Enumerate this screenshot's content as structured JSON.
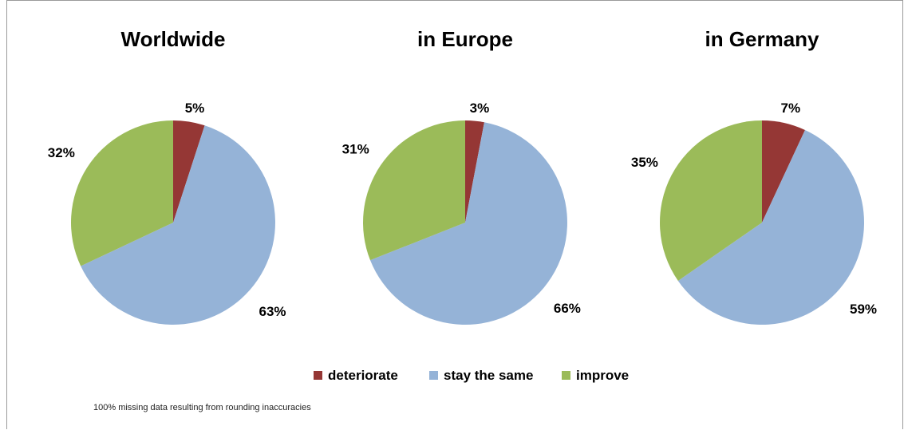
{
  "chart_data": [
    {
      "type": "pie",
      "title": "Worldwide",
      "categories": [
        "deteriorate",
        "stay the same",
        "improve"
      ],
      "values": [
        5,
        63,
        32
      ],
      "labels": [
        "5%",
        "63%",
        "32%"
      ]
    },
    {
      "type": "pie",
      "title": "in Europe",
      "categories": [
        "deteriorate",
        "stay the same",
        "improve"
      ],
      "values": [
        3,
        66,
        31
      ],
      "labels": [
        "3%",
        "66%",
        "31%"
      ]
    },
    {
      "type": "pie",
      "title": "in Germany",
      "categories": [
        "deteriorate",
        "stay the same",
        "improve"
      ],
      "values": [
        7,
        59,
        35
      ],
      "labels": [
        "7%",
        "59%",
        "35%"
      ]
    }
  ],
  "legend": {
    "placement": "bottom",
    "items": [
      {
        "label": "deteriorate",
        "color": "#953735"
      },
      {
        "label": "stay the same",
        "color": "#95b3d7"
      },
      {
        "label": "improve",
        "color": "#9bbb59"
      }
    ]
  },
  "colors": [
    "#953735",
    "#95b3d7",
    "#9bbb59"
  ],
  "footnote": "100% missing data resulting from rounding inaccuracies"
}
